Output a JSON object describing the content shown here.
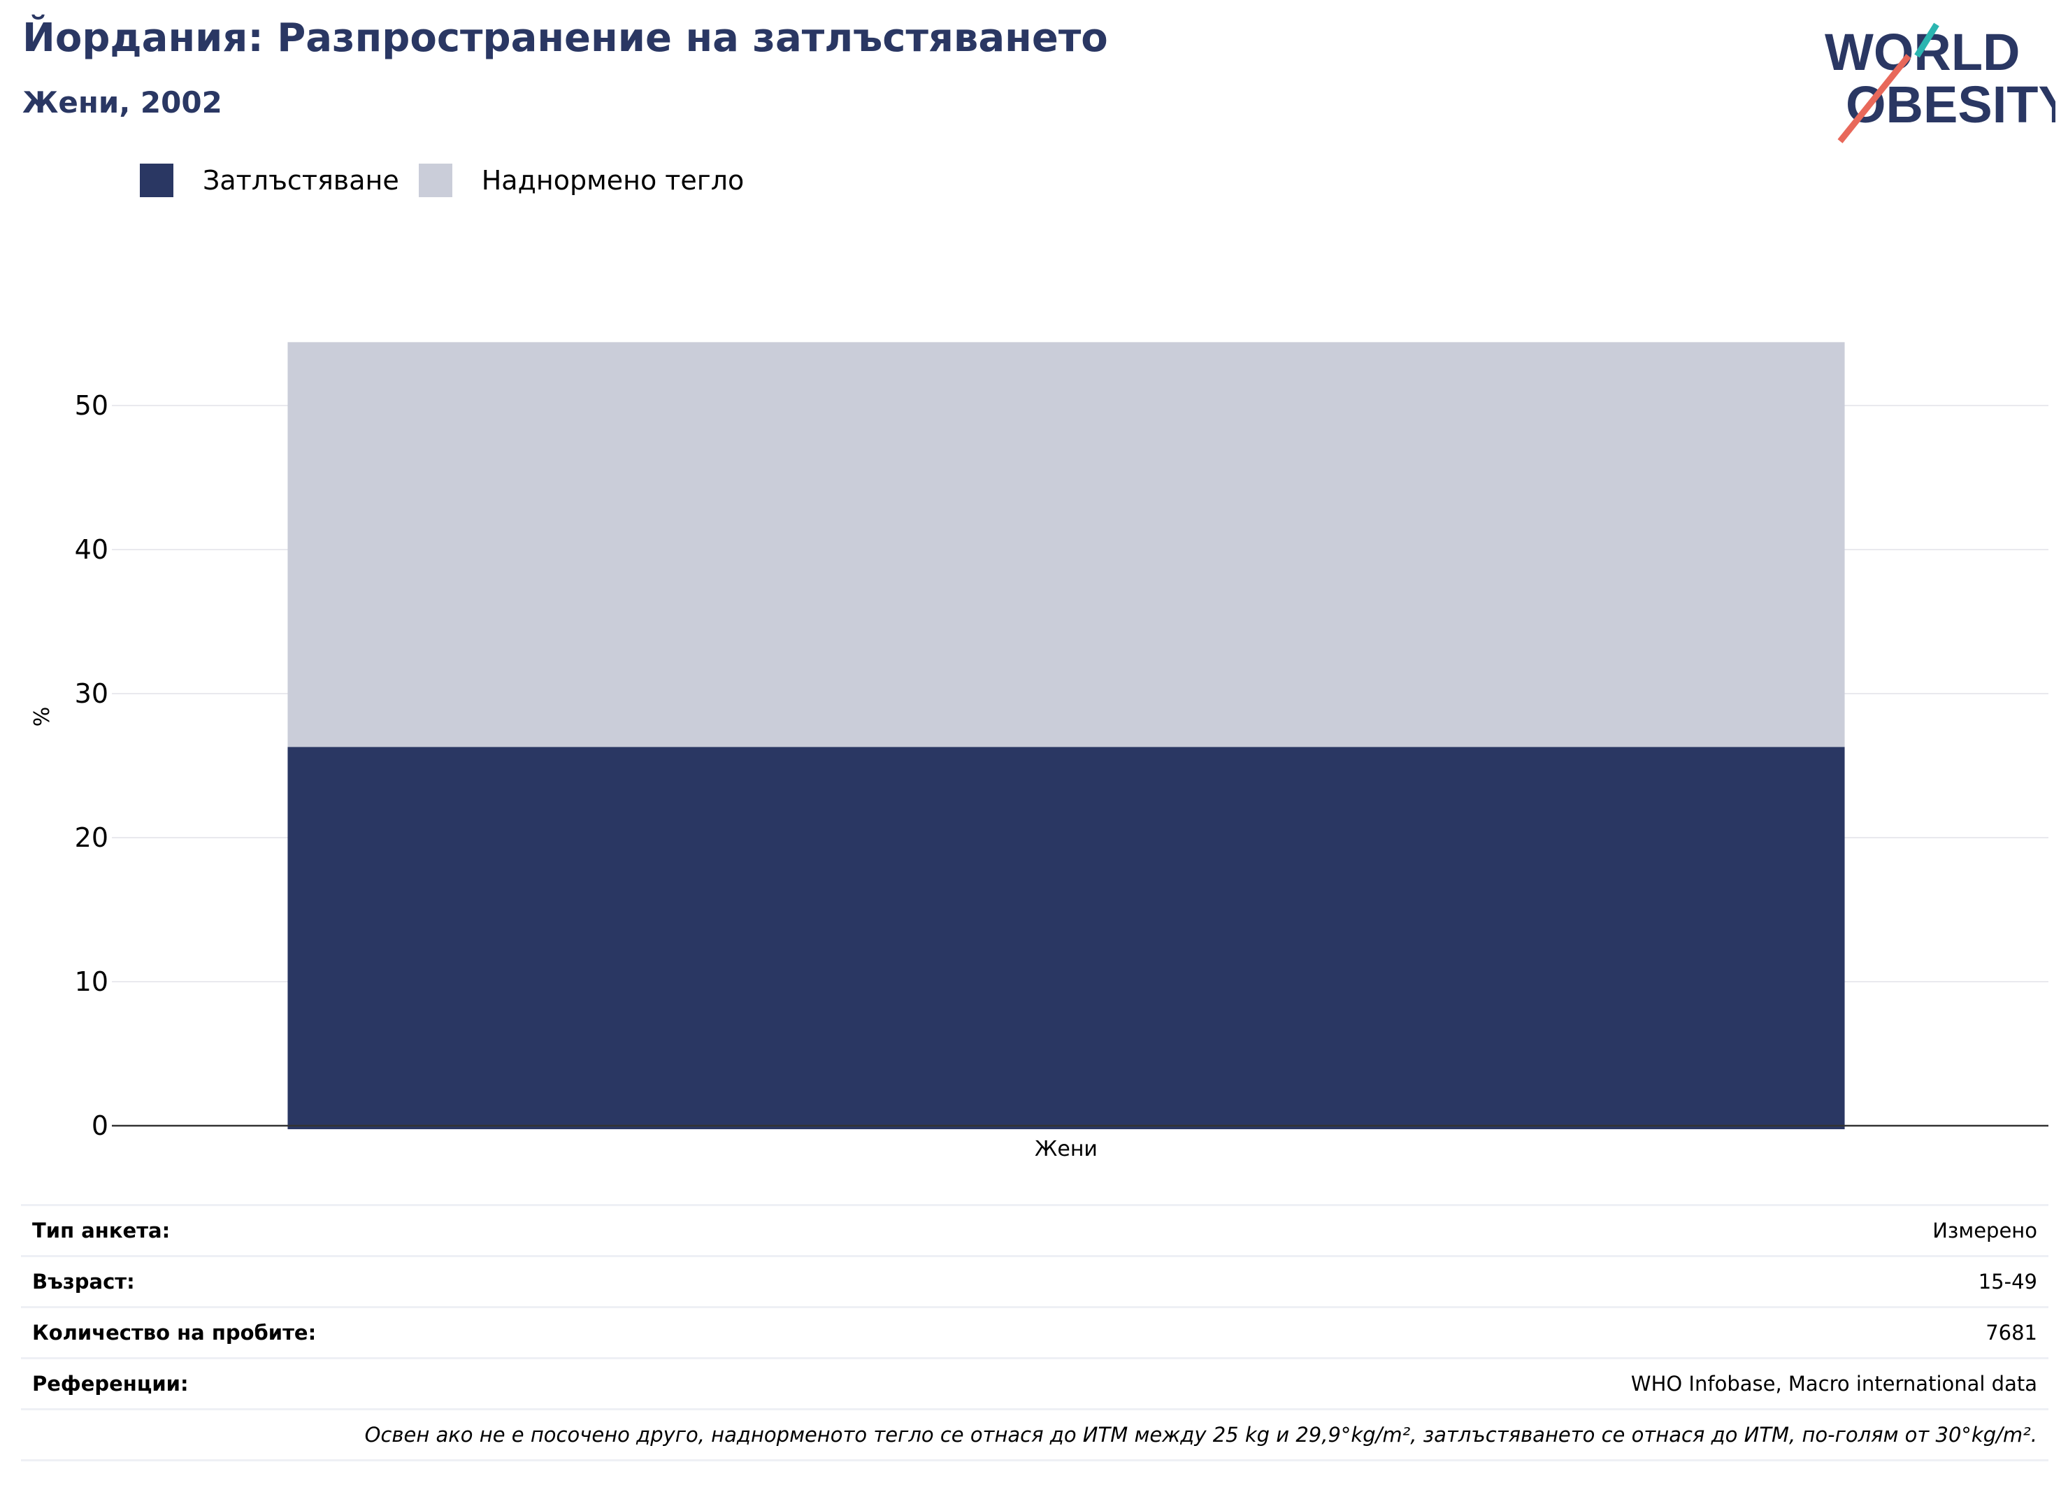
{
  "header": {
    "title": "Йордания: Разпространение на затлъстяването",
    "subtitle": "Жени, 2002"
  },
  "logo": {
    "line1": "WORLD",
    "line2": "OBESITY"
  },
  "legend": [
    {
      "label": "Затлъстяване",
      "color": "#2a3763"
    },
    {
      "label": "Наднормено тегло",
      "color": "#cacdd9"
    }
  ],
  "chart_data": {
    "type": "bar",
    "stacked": true,
    "categories": [
      "Жени"
    ],
    "series": [
      {
        "name": "Затлъстяване",
        "values": [
          26.3
        ],
        "color": "#2a3763"
      },
      {
        "name": "Наднормено тегло",
        "values": [
          28.1
        ],
        "color": "#cacdd9"
      }
    ],
    "ylabel": "%",
    "ylim": [
      0,
      55
    ],
    "yticks": [
      0,
      10,
      20,
      30,
      40,
      50
    ],
    "grid": true,
    "legend_position": "top-left"
  },
  "info": [
    {
      "label": "Тип анкета:",
      "value": "Измерено"
    },
    {
      "label": "Възраст:",
      "value": "15-49"
    },
    {
      "label": "Количество на пробите:",
      "value": "7681"
    },
    {
      "label": "Референции:",
      "value": "WHO Infobase, Macro international data"
    }
  ],
  "note": "Освен ако не е посочено друго, наднорменото тегло се отнася до ИТМ между 25 kg и 29,9°kg/m², затлъстяването се отнася до ИТМ, по-голям от 30°kg/m²."
}
